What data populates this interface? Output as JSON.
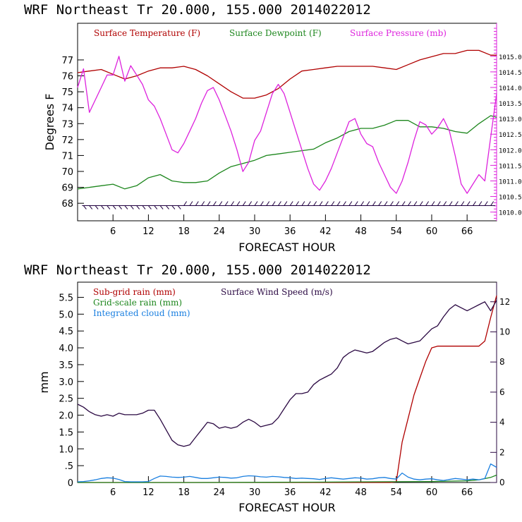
{
  "chart_data": [
    {
      "type": "line",
      "title": "WRF  Northeast Tr  20.000, 155.000  2014022012",
      "xlabel": "FORECAST HOUR",
      "ylabel": "Degrees F",
      "y2label": "",
      "xlim": [
        0,
        71
      ],
      "ylim": [
        66.9,
        79.3
      ],
      "y2lim": [
        1009.72,
        1016.06
      ],
      "xticks": [
        6,
        12,
        18,
        24,
        30,
        36,
        42,
        48,
        54,
        60,
        66
      ],
      "xtick_labels": [
        "6",
        "12",
        "18",
        "24",
        "30",
        "36",
        "42",
        "48",
        "54",
        "60",
        "66"
      ],
      "yticks": [
        68,
        69,
        70,
        71,
        72,
        73,
        74,
        75,
        76,
        77
      ],
      "ytick_labels": [
        "68",
        "69",
        "70",
        "71",
        "72",
        "73",
        "74",
        "75",
        "76",
        "77"
      ],
      "y2ticks": [
        1010.0,
        1010.5,
        1011.0,
        1011.5,
        1012.0,
        1012.5,
        1013.0,
        1013.5,
        1014.0,
        1014.5,
        1015.0
      ],
      "y2tick_labels": [
        "1010.0",
        "1010.5",
        "1011.0",
        "1011.5",
        "1012.0",
        "1012.5",
        "1013.0",
        "1013.5",
        "1014.0",
        "1014.5",
        "1015.0"
      ],
      "legend_position": "top",
      "series": [
        {
          "name": "Surface Temperature (F)",
          "color": "#b00000",
          "axis": "left",
          "x": [
            0,
            2,
            4,
            6,
            8,
            10,
            12,
            14,
            16,
            18,
            20,
            22,
            24,
            26,
            28,
            30,
            32,
            34,
            36,
            38,
            40,
            42,
            44,
            46,
            48,
            50,
            52,
            54,
            56,
            58,
            60,
            62,
            64,
            66,
            68,
            70,
            71
          ],
          "values": [
            76.2,
            76.3,
            76.4,
            76.1,
            75.8,
            76.0,
            76.3,
            76.5,
            76.5,
            76.6,
            76.4,
            76.0,
            75.5,
            75.0,
            74.6,
            74.6,
            74.8,
            75.2,
            75.8,
            76.3,
            76.4,
            76.5,
            76.6,
            76.6,
            76.6,
            76.6,
            76.5,
            76.4,
            76.7,
            77.0,
            77.2,
            77.4,
            77.4,
            77.6,
            77.6,
            77.3,
            77.3
          ]
        },
        {
          "name": "Surface Dewpoint (F)",
          "color": "#1c861c",
          "axis": "left",
          "x": [
            0,
            2,
            4,
            6,
            8,
            10,
            12,
            14,
            16,
            18,
            20,
            22,
            24,
            26,
            28,
            30,
            32,
            34,
            36,
            38,
            40,
            42,
            44,
            46,
            48,
            50,
            52,
            54,
            56,
            58,
            60,
            62,
            64,
            66,
            68,
            70,
            71
          ],
          "values": [
            68.9,
            69.0,
            69.1,
            69.2,
            68.9,
            69.1,
            69.6,
            69.8,
            69.4,
            69.3,
            69.3,
            69.4,
            69.9,
            70.3,
            70.5,
            70.7,
            71.0,
            71.1,
            71.2,
            71.3,
            71.4,
            71.8,
            72.1,
            72.5,
            72.7,
            72.7,
            72.9,
            73.2,
            73.2,
            72.8,
            72.8,
            72.7,
            72.5,
            72.4,
            73.0,
            73.5,
            73.4
          ]
        },
        {
          "name": "Surface Pressure (mb)",
          "color": "#dd22dd",
          "axis": "right",
          "x": [
            0,
            1,
            2,
            3,
            4,
            5,
            6,
            7,
            8,
            9,
            10,
            11,
            12,
            13,
            14,
            15,
            16,
            17,
            18,
            19,
            20,
            21,
            22,
            23,
            24,
            25,
            26,
            27,
            28,
            29,
            30,
            31,
            32,
            33,
            34,
            35,
            36,
            37,
            38,
            39,
            40,
            41,
            42,
            43,
            44,
            45,
            46,
            47,
            48,
            49,
            50,
            51,
            52,
            53,
            54,
            55,
            56,
            57,
            58,
            59,
            60,
            61,
            62,
            63,
            64,
            65,
            66,
            67,
            68,
            69,
            70,
            71
          ],
          "values": [
            1014.0,
            1014.6,
            1013.2,
            1013.6,
            1014.0,
            1014.4,
            1014.4,
            1015.0,
            1014.2,
            1014.7,
            1014.4,
            1014.1,
            1013.6,
            1013.4,
            1013.0,
            1012.5,
            1012.0,
            1011.9,
            1012.2,
            1012.6,
            1013.0,
            1013.5,
            1013.9,
            1014.0,
            1013.6,
            1013.1,
            1012.6,
            1012.0,
            1011.3,
            1011.6,
            1012.3,
            1012.6,
            1013.2,
            1013.8,
            1014.1,
            1013.8,
            1013.2,
            1012.6,
            1012.0,
            1011.4,
            1010.9,
            1010.7,
            1011.0,
            1011.4,
            1011.9,
            1012.4,
            1012.9,
            1013.0,
            1012.5,
            1012.2,
            1012.1,
            1011.6,
            1011.2,
            1010.8,
            1010.6,
            1011.0,
            1011.6,
            1012.3,
            1012.9,
            1012.8,
            1012.5,
            1012.7,
            1013.0,
            1012.6,
            1011.8,
            1010.9,
            1010.6,
            1010.9,
            1011.2,
            1011.0,
            1012.4,
            1013.8
          ]
        },
        {
          "name": "Wind barbs",
          "color": "#200040",
          "type": "barbs",
          "baseline": 67.85,
          "x": [
            1,
            2,
            3,
            4,
            5,
            6,
            7,
            8,
            9,
            10,
            11,
            12,
            13,
            14,
            15,
            16,
            17,
            18,
            19,
            20,
            21,
            22,
            23,
            24,
            25,
            26,
            27,
            28,
            29,
            30,
            31,
            32,
            33,
            34,
            35,
            36,
            37,
            38,
            39,
            40,
            41,
            42,
            43,
            44,
            45,
            46,
            47,
            48,
            49,
            50,
            51,
            52,
            53,
            54,
            55,
            56,
            57,
            58,
            59,
            60,
            61,
            62,
            63,
            64,
            65,
            66,
            67,
            68,
            69,
            70
          ],
          "direction": [
            "down",
            "down",
            "down",
            "down",
            "down",
            "down",
            "down",
            "down",
            "down",
            "down",
            "down",
            "down",
            "down",
            "down",
            "down",
            "down",
            "down",
            "up",
            "up",
            "up",
            "up",
            "up",
            "up",
            "up",
            "up",
            "up",
            "up",
            "up",
            "up",
            "up",
            "up",
            "up",
            "up",
            "up",
            "up",
            "up",
            "up",
            "up",
            "up",
            "up",
            "up",
            "up",
            "up",
            "up",
            "up",
            "up",
            "up",
            "up",
            "up",
            "up",
            "up",
            "up",
            "up",
            "up",
            "up",
            "up",
            "up",
            "up",
            "up",
            "up",
            "up",
            "up",
            "up",
            "up",
            "up",
            "up",
            "up",
            "up",
            "up",
            "up"
          ]
        }
      ]
    },
    {
      "type": "line",
      "title": "WRF  Northeast Tr  20.000, 155.000  2014022012",
      "xlabel": "FORECAST HOUR",
      "ylabel": "mm",
      "xlim": [
        0,
        71
      ],
      "ylim": [
        0,
        5.95
      ],
      "y2lim": [
        0,
        13.3
      ],
      "xticks": [
        6,
        12,
        18,
        24,
        30,
        36,
        42,
        48,
        54,
        60,
        66
      ],
      "xtick_labels": [
        "6",
        "12",
        "18",
        "24",
        "30",
        "36",
        "42",
        "48",
        "54",
        "60",
        "66"
      ],
      "yticks": [
        0,
        0.5,
        1.0,
        1.5,
        2.0,
        2.5,
        3.0,
        3.5,
        4.0,
        4.5,
        5.0,
        5.5
      ],
      "ytick_labels": [
        "0",
        ".5",
        "1.0",
        "1.5",
        "2.0",
        "2.5",
        "3.0",
        "3.5",
        "4.0",
        "4.5",
        "5.0",
        "5.5"
      ],
      "y2ticks": [
        0,
        2,
        4,
        6,
        8,
        10,
        12
      ],
      "y2tick_labels": [
        "0",
        "2",
        "4",
        "6",
        "8",
        "10",
        "12"
      ],
      "legend_position": "top-left",
      "series": [
        {
          "name": "Sub-grid rain (mm)",
          "color": "#b00000",
          "axis": "left",
          "x": [
            0,
            53,
            54,
            55,
            56,
            57,
            58,
            59,
            60,
            61,
            68,
            69,
            70,
            71
          ],
          "values": [
            0,
            0,
            0.02,
            1.2,
            1.9,
            2.6,
            3.1,
            3.6,
            4.0,
            4.05,
            4.05,
            4.2,
            4.9,
            5.55
          ]
        },
        {
          "name": "Grid-scale rain (mm)",
          "color": "#1c861c",
          "axis": "left",
          "x": [
            0,
            20,
            40,
            60,
            66,
            68,
            70,
            71
          ],
          "values": [
            0,
            0,
            0.01,
            0.03,
            0.05,
            0.08,
            0.15,
            0.22
          ]
        },
        {
          "name": "Integrated cloud (mm)",
          "color": "#1a7fe0",
          "axis": "left",
          "x": [
            0,
            1,
            2,
            3,
            4,
            5,
            6,
            7,
            8,
            9,
            10,
            11,
            12,
            13,
            14,
            15,
            16,
            17,
            18,
            19,
            20,
            21,
            22,
            23,
            24,
            25,
            26,
            27,
            28,
            29,
            30,
            31,
            32,
            33,
            34,
            35,
            36,
            37,
            38,
            39,
            40,
            41,
            42,
            43,
            44,
            45,
            46,
            47,
            48,
            49,
            50,
            51,
            52,
            53,
            54,
            55,
            56,
            57,
            58,
            59,
            60,
            61,
            62,
            63,
            64,
            65,
            66,
            67,
            68,
            69,
            70,
            71
          ],
          "values": [
            0.02,
            0.03,
            0.05,
            0.08,
            0.12,
            0.14,
            0.13,
            0.09,
            0.03,
            0.02,
            0.02,
            0.02,
            0.03,
            0.12,
            0.19,
            0.18,
            0.16,
            0.15,
            0.16,
            0.18,
            0.15,
            0.12,
            0.12,
            0.14,
            0.16,
            0.15,
            0.13,
            0.14,
            0.18,
            0.2,
            0.19,
            0.17,
            0.16,
            0.18,
            0.17,
            0.15,
            0.14,
            0.12,
            0.13,
            0.12,
            0.11,
            0.09,
            0.12,
            0.14,
            0.12,
            0.1,
            0.12,
            0.14,
            0.13,
            0.1,
            0.11,
            0.14,
            0.15,
            0.12,
            0.1,
            0.28,
            0.16,
            0.1,
            0.08,
            0.1,
            0.11,
            0.08,
            0.06,
            0.09,
            0.12,
            0.1,
            0.08,
            0.1,
            0.08,
            0.12,
            0.55,
            0.45
          ]
        },
        {
          "name": "Surface Wind Speed (m/s)",
          "color": "#2a0842",
          "axis": "right",
          "x": [
            0,
            1,
            2,
            3,
            4,
            5,
            6,
            7,
            8,
            9,
            10,
            11,
            12,
            13,
            14,
            15,
            16,
            17,
            18,
            19,
            20,
            21,
            22,
            23,
            24,
            25,
            26,
            27,
            28,
            29,
            30,
            31,
            32,
            33,
            34,
            35,
            36,
            37,
            38,
            39,
            40,
            41,
            42,
            43,
            44,
            45,
            46,
            47,
            48,
            49,
            50,
            51,
            52,
            53,
            54,
            55,
            56,
            57,
            58,
            59,
            60,
            61,
            62,
            63,
            64,
            65,
            66,
            67,
            68,
            69,
            70,
            71
          ],
          "values": [
            5.2,
            5.0,
            4.7,
            4.5,
            4.4,
            4.5,
            4.4,
            4.6,
            4.5,
            4.5,
            4.5,
            4.6,
            4.8,
            4.8,
            4.2,
            3.5,
            2.8,
            2.5,
            2.4,
            2.5,
            3.0,
            3.5,
            4.0,
            3.9,
            3.6,
            3.7,
            3.6,
            3.7,
            4.0,
            4.2,
            4.0,
            3.7,
            3.8,
            3.9,
            4.3,
            4.9,
            5.5,
            5.9,
            5.9,
            6.0,
            6.5,
            6.8,
            7.0,
            7.2,
            7.6,
            8.3,
            8.6,
            8.8,
            8.7,
            8.6,
            8.7,
            9.0,
            9.3,
            9.5,
            9.6,
            9.4,
            9.2,
            9.3,
            9.4,
            9.8,
            10.2,
            10.4,
            11.0,
            11.5,
            11.8,
            11.6,
            11.4,
            11.6,
            11.8,
            12.0,
            11.4,
            12.1
          ]
        }
      ]
    }
  ]
}
